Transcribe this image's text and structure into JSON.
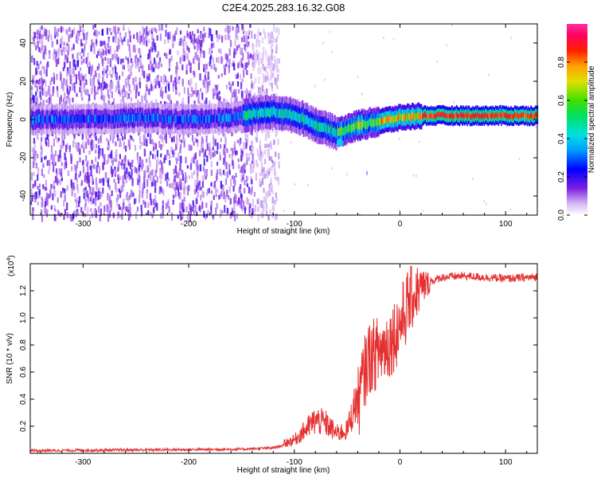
{
  "title": "C2E4.2025.283.16.32.G08",
  "chart_data": [
    {
      "type": "heatmap",
      "name": "spectrogram",
      "xlabel": "Height of straight line (km)",
      "ylabel": "Frequency (Hz)",
      "xlim": [
        -350,
        130
      ],
      "ylim": [
        -50,
        50
      ],
      "x_ticks": [
        -300,
        -200,
        -100,
        0,
        100
      ],
      "y_ticks": [
        -40,
        -20,
        0,
        20,
        40
      ],
      "colorbar": {
        "label": "Normalized spectral amplitude",
        "range": [
          0,
          1
        ],
        "ticks": [
          0.0,
          0.2,
          0.4,
          0.6,
          0.8
        ]
      },
      "ridge": {
        "x": [
          -350,
          -300,
          -250,
          -200,
          -160,
          -140,
          -120,
          -100,
          -90,
          -80,
          -70,
          -60,
          -50,
          -40,
          -20,
          0,
          20,
          40,
          60,
          80,
          100,
          130
        ],
        "y": [
          0,
          0,
          1,
          0,
          1,
          3,
          4,
          2,
          0,
          -3,
          -5,
          -7,
          -5,
          -3,
          -1,
          1,
          2,
          2,
          2,
          2,
          2,
          2
        ]
      },
      "noise_scatter_until_x": -125
    },
    {
      "type": "line",
      "name": "snr",
      "xlabel": "Height of straight line (km)",
      "ylabel": "SNR (10 * v/v)",
      "y_multiplier": "(x10",
      "y_multiplier_exp": "4",
      "y_multiplier_close": ")",
      "xlim": [
        -350,
        130
      ],
      "ylim": [
        0,
        1.4
      ],
      "x_ticks": [
        -300,
        -200,
        -100,
        0,
        100
      ],
      "y_ticks": [
        0.2,
        0.4,
        0.6,
        0.8,
        1.0,
        1.2
      ],
      "color": "#e53030",
      "envelope": {
        "x": [
          -350,
          -150,
          -120,
          -100,
          -90,
          -80,
          -70,
          -60,
          -50,
          -40,
          -35,
          -30,
          -20,
          -10,
          0,
          10,
          20,
          30,
          40,
          60,
          80,
          100,
          130
        ],
        "y": [
          0.02,
          0.03,
          0.04,
          0.08,
          0.14,
          0.2,
          0.18,
          0.12,
          0.14,
          0.35,
          0.55,
          0.7,
          0.75,
          0.82,
          0.95,
          1.15,
          1.22,
          1.27,
          1.3,
          1.31,
          1.3,
          1.29,
          1.3
        ]
      }
    }
  ]
}
